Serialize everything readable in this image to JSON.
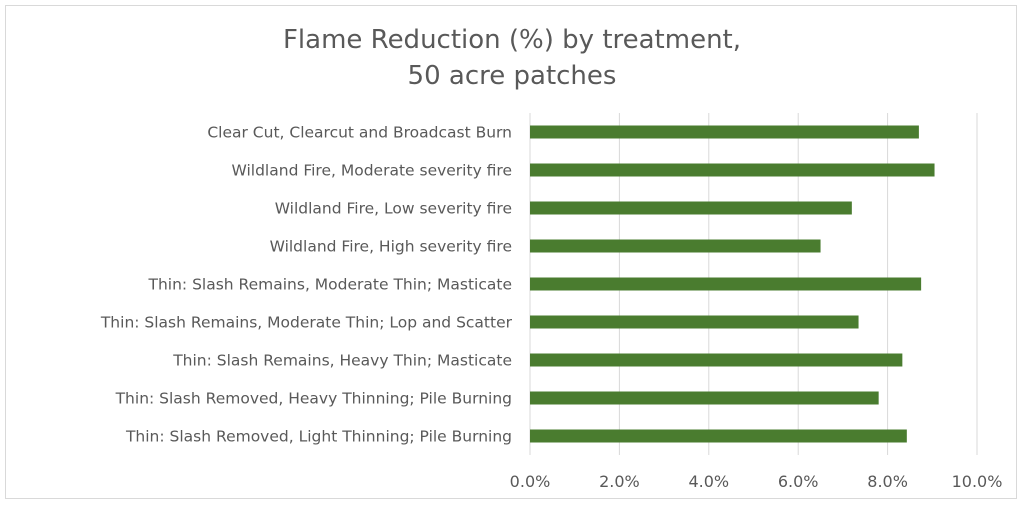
{
  "chart_data": {
    "type": "bar",
    "orientation": "horizontal",
    "title_lines": [
      "Flame Reduction (%) by treatment,",
      "50 acre patches"
    ],
    "categories": [
      "Clear Cut, Clearcut and Broadcast Burn",
      "Wildland Fire, Moderate severity fire",
      "Wildland Fire, Low severity fire",
      "Wildland Fire, High severity fire",
      "Thin: Slash Remains, Moderate Thin; Masticate",
      "Thin: Slash Remains, Moderate Thin; Lop and Scatter",
      "Thin: Slash Remains, Heavy Thin; Masticate",
      "Thin: Slash Removed, Heavy Thinning; Pile Burning",
      "Thin: Slash Removed, Light Thinning; Pile Burning"
    ],
    "values": [
      0.087,
      0.0905,
      0.072,
      0.065,
      0.0875,
      0.0735,
      0.0833,
      0.078,
      0.0843
    ],
    "xlim": [
      0,
      0.1
    ],
    "xticks": [
      0,
      0.02,
      0.04,
      0.06,
      0.08,
      0.1
    ],
    "xtick_labels": [
      "0.0%",
      "2.0%",
      "4.0%",
      "6.0%",
      "8.0%",
      "10.0%"
    ],
    "bar_color": "#4a7c2f",
    "grid": true,
    "gridline_color": "#d9d9d9",
    "xlabel": "",
    "ylabel": ""
  }
}
